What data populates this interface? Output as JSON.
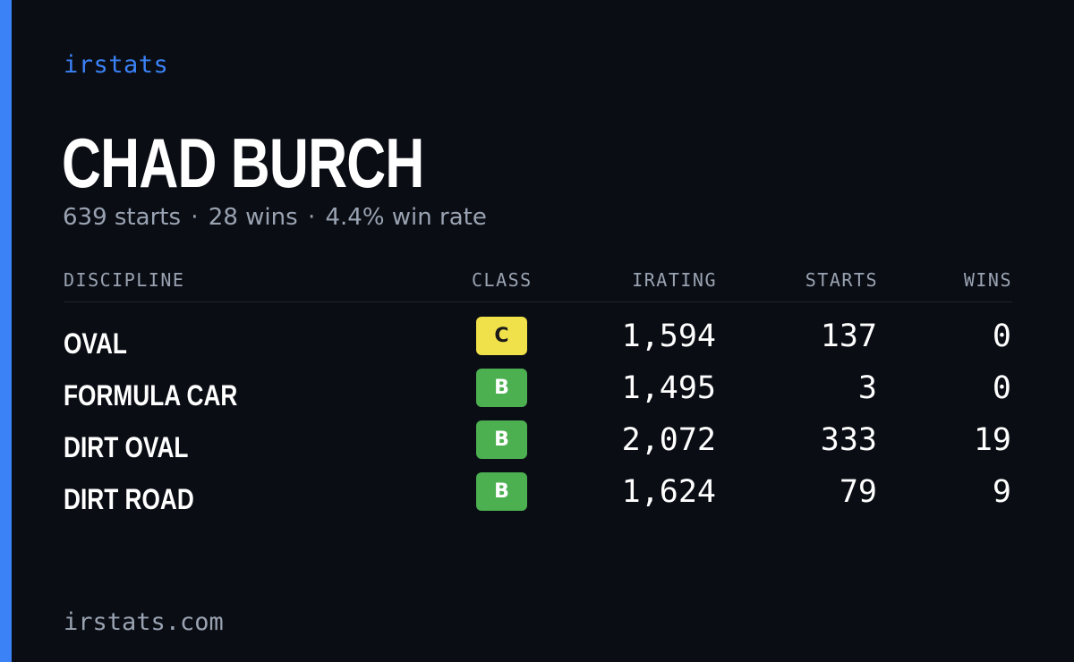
{
  "brand": "irstats",
  "player": {
    "name": "CHAD BURCH",
    "starts_text": "639 starts",
    "wins_text": "28 wins",
    "winrate_text": "4.4% win rate",
    "separator": "·"
  },
  "table": {
    "headers": {
      "discipline": "DISCIPLINE",
      "class": "CLASS",
      "irating": "IRATING",
      "starts": "STARTS",
      "wins": "WINS"
    },
    "rows": [
      {
        "discipline": "OVAL",
        "class": "C",
        "class_color": "#f0e14a",
        "irating": "1,594",
        "starts": "137",
        "wins": "0"
      },
      {
        "discipline": "FORMULA CAR",
        "class": "B",
        "class_color": "#4caf50",
        "irating": "1,495",
        "starts": "3",
        "wins": "0"
      },
      {
        "discipline": "DIRT OVAL",
        "class": "B",
        "class_color": "#4caf50",
        "irating": "2,072",
        "starts": "333",
        "wins": "19"
      },
      {
        "discipline": "DIRT ROAD",
        "class": "B",
        "class_color": "#4caf50",
        "irating": "1,624",
        "starts": "79",
        "wins": "9"
      }
    ]
  },
  "footer": "irstats.com",
  "colors": {
    "accent": "#3b82f6",
    "background": "#0a0d14",
    "muted": "#9aa3b2"
  }
}
